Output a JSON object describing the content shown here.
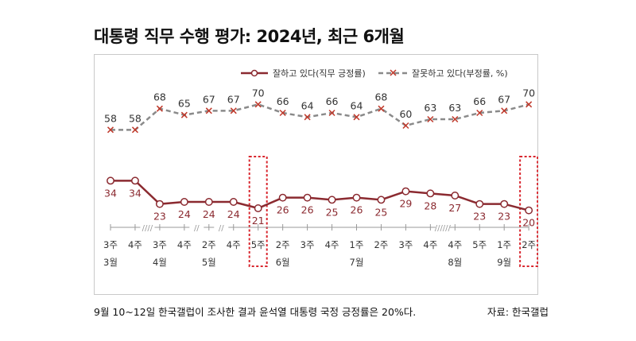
{
  "title": "대통령 직무 수행 평가: 2024년, 최근 6개월",
  "caption": "9월 10~12일 한국갤럽이 조사한 결과 윤석열 대통령 국정 긍정률은 20%다.",
  "source": "자료: 한국갤럽",
  "colors": {
    "approve": "#8b2a30",
    "disapprove": "#8a8a8a",
    "disapprove_marker": "#c0392b",
    "highlight": "#d9262e"
  },
  "chart_data": {
    "type": "line",
    "legend_position": "top-right",
    "grid": false,
    "ylim": [
      15,
      75
    ],
    "x": [
      "3주",
      "4주",
      "3주",
      "4주",
      "2주",
      "4주",
      "5주",
      "2주",
      "3주",
      "4주",
      "1주",
      "2주",
      "3주",
      "4주",
      "4주",
      "5주",
      "1주",
      "2주"
    ],
    "month_labels": [
      {
        "index": 0,
        "label": "3월"
      },
      {
        "index": 2,
        "label": "4월"
      },
      {
        "index": 4,
        "label": "5월"
      },
      {
        "index": 7,
        "label": "6월"
      },
      {
        "index": 10,
        "label": "7월"
      },
      {
        "index": 14,
        "label": "8월"
      },
      {
        "index": 16,
        "label": "9월"
      }
    ],
    "axis_breaks": [
      {
        "after_index": 1,
        "mark": "////"
      },
      {
        "after_index": 3,
        "mark": "//"
      },
      {
        "after_index": 4,
        "mark": "//"
      },
      {
        "after_index": 13,
        "mark": "//////"
      }
    ],
    "highlighted_indices": [
      6,
      17
    ],
    "series": [
      {
        "name": "잘하고 있다(직무 긍정률)",
        "key": "approve",
        "values": [
          34,
          34,
          23,
          24,
          24,
          24,
          21,
          26,
          26,
          25,
          26,
          25,
          29,
          28,
          27,
          23,
          23,
          20
        ]
      },
      {
        "name": "잘못하고 있다(부정률, %)",
        "key": "disapprove",
        "values": [
          58,
          58,
          68,
          65,
          67,
          67,
          70,
          66,
          64,
          66,
          64,
          68,
          60,
          63,
          63,
          66,
          67,
          70
        ]
      }
    ]
  }
}
